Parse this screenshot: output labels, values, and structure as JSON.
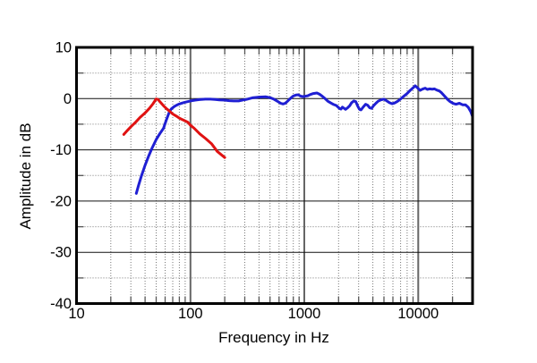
{
  "figure": {
    "background": "#ffffff",
    "frame_color": "#000000",
    "major_grid_color": "#111111",
    "decade_line_color": "#666666",
    "minor_grid_color": "#777777",
    "tick_stub_color": "#555555"
  },
  "chart_data": {
    "type": "line",
    "title": "",
    "xlabel": "Frequency in Hz",
    "ylabel": "Amplitude in dB",
    "xscale": "log",
    "xlim": [
      10,
      30000
    ],
    "ylim": [
      -40,
      10
    ],
    "grid": "major solid every 10 dB and each decade; dotted minors every 5 dB and at log sub-decades; stub ticks on all four axes",
    "legend": "none",
    "x_major_ticks": [
      {
        "value": 10,
        "label": "10"
      },
      {
        "value": 100,
        "label": "100"
      },
      {
        "value": 1000,
        "label": "1000"
      },
      {
        "value": 10000,
        "label": "10000"
      }
    ],
    "y_major_ticks": [
      {
        "value": 10,
        "label": "10"
      },
      {
        "value": 0,
        "label": "0"
      },
      {
        "value": -10,
        "label": "-10"
      },
      {
        "value": -20,
        "label": "-20"
      },
      {
        "value": -30,
        "label": "-30"
      },
      {
        "value": -40,
        "label": "-40"
      }
    ],
    "y_minor_ticks": [
      5,
      -5,
      -15,
      -25,
      -35
    ],
    "series": [
      {
        "name": "blue-curve",
        "color": "#1f1fd3",
        "width": 3,
        "points": [
          [
            33.5,
            -18.5
          ],
          [
            35,
            -17
          ],
          [
            37,
            -15.2
          ],
          [
            40,
            -13
          ],
          [
            43,
            -11.2
          ],
          [
            46,
            -9.7
          ],
          [
            50,
            -8
          ],
          [
            54,
            -6.8
          ],
          [
            58,
            -5.8
          ],
          [
            61,
            -4.4
          ],
          [
            64,
            -3.1
          ],
          [
            66,
            -2.4
          ],
          [
            68,
            -2
          ],
          [
            72,
            -1.55
          ],
          [
            76,
            -1.25
          ],
          [
            80,
            -1.05
          ],
          [
            85,
            -0.85
          ],
          [
            90,
            -0.7
          ],
          [
            100,
            -0.45
          ],
          [
            110,
            -0.3
          ],
          [
            120,
            -0.2
          ],
          [
            135,
            -0.1
          ],
          [
            150,
            -0.1
          ],
          [
            165,
            -0.15
          ],
          [
            180,
            -0.25
          ],
          [
            200,
            -0.3
          ],
          [
            220,
            -0.4
          ],
          [
            240,
            -0.45
          ],
          [
            265,
            -0.45
          ],
          [
            285,
            -0.3
          ],
          [
            310,
            -0.15
          ],
          [
            350,
            0.15
          ],
          [
            400,
            0.3
          ],
          [
            460,
            0.35
          ],
          [
            500,
            0.2
          ],
          [
            540,
            -0.1
          ],
          [
            580,
            -0.5
          ],
          [
            620,
            -0.9
          ],
          [
            650,
            -1.05
          ],
          [
            680,
            -0.9
          ],
          [
            720,
            -0.4
          ],
          [
            760,
            0.1
          ],
          [
            800,
            0.5
          ],
          [
            845,
            0.7
          ],
          [
            885,
            0.75
          ],
          [
            925,
            0.5
          ],
          [
            965,
            0.4
          ],
          [
            1010,
            0.45
          ],
          [
            1070,
            0.55
          ],
          [
            1130,
            0.8
          ],
          [
            1200,
            1
          ],
          [
            1290,
            1.1
          ],
          [
            1360,
            0.85
          ],
          [
            1440,
            0.45
          ],
          [
            1520,
            0
          ],
          [
            1610,
            -0.5
          ],
          [
            1710,
            -0.85
          ],
          [
            1810,
            -1.15
          ],
          [
            1910,
            -1.35
          ],
          [
            2030,
            -1.9
          ],
          [
            2100,
            -2.05
          ],
          [
            2160,
            -1.65
          ],
          [
            2300,
            -2.1
          ],
          [
            2400,
            -1.8
          ],
          [
            2500,
            -1.4
          ],
          [
            2600,
            -0.8
          ],
          [
            2720,
            -0.45
          ],
          [
            2830,
            -0.6
          ],
          [
            2950,
            -1.5
          ],
          [
            3050,
            -2.1
          ],
          [
            3150,
            -2.2
          ],
          [
            3300,
            -1.6
          ],
          [
            3450,
            -1.1
          ],
          [
            3600,
            -1.3
          ],
          [
            3750,
            -1.8
          ],
          [
            3900,
            -1.9
          ],
          [
            4050,
            -1.4
          ],
          [
            4250,
            -0.9
          ],
          [
            4450,
            -0.5
          ],
          [
            4700,
            -0.25
          ],
          [
            5000,
            -0.1
          ],
          [
            5300,
            -0.45
          ],
          [
            5600,
            -0.8
          ],
          [
            5900,
            -1
          ],
          [
            6200,
            -0.85
          ],
          [
            6500,
            -0.6
          ],
          [
            6800,
            -0.3
          ],
          [
            7100,
            0.05
          ],
          [
            7500,
            0.5
          ],
          [
            8000,
            1
          ],
          [
            8500,
            1.6
          ],
          [
            9000,
            2.1
          ],
          [
            9400,
            2.5
          ],
          [
            9700,
            2.25
          ],
          [
            10000,
            1.95
          ],
          [
            10400,
            1.6
          ],
          [
            10900,
            1.85
          ],
          [
            11500,
            2.05
          ],
          [
            12000,
            1.8
          ],
          [
            12600,
            1.9
          ],
          [
            13300,
            1.85
          ],
          [
            13900,
            1.9
          ],
          [
            14600,
            1.65
          ],
          [
            15300,
            1.5
          ],
          [
            16000,
            1.15
          ],
          [
            17000,
            0.5
          ],
          [
            18100,
            -0.15
          ],
          [
            19100,
            -0.6
          ],
          [
            20300,
            -0.95
          ],
          [
            21500,
            -1.1
          ],
          [
            23000,
            -0.9
          ],
          [
            24500,
            -1.2
          ],
          [
            26000,
            -1.2
          ],
          [
            27500,
            -1.7
          ],
          [
            29000,
            -2.6
          ],
          [
            30000,
            -3.5
          ]
        ]
      },
      {
        "name": "red-curve",
        "color": "#e01212",
        "width": 3,
        "points": [
          [
            26,
            -7
          ],
          [
            28,
            -6.2
          ],
          [
            30,
            -5.5
          ],
          [
            33,
            -4.6
          ],
          [
            36,
            -3.7
          ],
          [
            40,
            -2.8
          ],
          [
            44,
            -1.8
          ],
          [
            47,
            -1
          ],
          [
            50,
            -0.05
          ],
          [
            52,
            -0.2
          ],
          [
            55,
            -0.8
          ],
          [
            58,
            -1.4
          ],
          [
            62,
            -2
          ],
          [
            66,
            -2.5
          ],
          [
            70,
            -3
          ],
          [
            75,
            -3.4
          ],
          [
            80,
            -3.8
          ],
          [
            85,
            -4.1
          ],
          [
            90,
            -4.35
          ],
          [
            95,
            -4.6
          ],
          [
            100,
            -5.2
          ],
          [
            108,
            -5.8
          ],
          [
            121,
            -6.9
          ],
          [
            136,
            -7.8
          ],
          [
            153,
            -8.8
          ],
          [
            172,
            -10.3
          ],
          [
            200,
            -11.5
          ]
        ]
      }
    ]
  }
}
